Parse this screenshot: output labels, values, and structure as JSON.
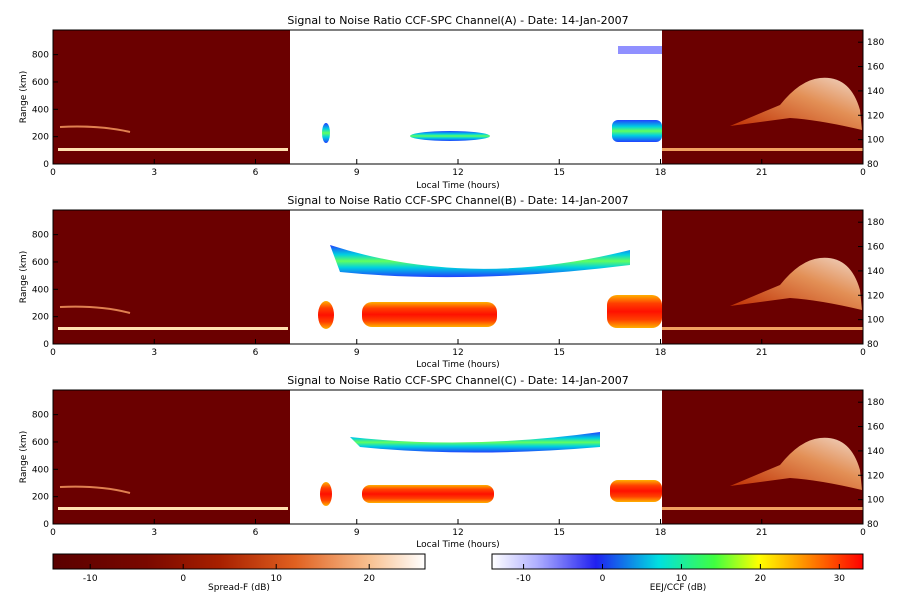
{
  "chart_data": [
    {
      "type": "heatmap",
      "title": "Signal to Noise Ratio CCF-SPC Channel(A) - Date: 14-Jan-2007",
      "xlabel": "Local Time (hours)",
      "ylabel": "Range (km)",
      "x_ticks": [
        "0",
        "3",
        "6",
        "9",
        "12",
        "15",
        "18",
        "21",
        "0"
      ],
      "y_ticks_left": [
        "0",
        "200",
        "400",
        "600",
        "800"
      ],
      "y_ticks_right": [
        "80",
        "100",
        "120",
        "140",
        "160",
        "180"
      ],
      "ylim_left": [
        0,
        980
      ],
      "ylim_right": [
        80,
        190
      ]
    },
    {
      "type": "heatmap",
      "title": "Signal to Noise Ratio CCF-SPC Channel(B) - Date: 14-Jan-2007",
      "xlabel": "Local Time (hours)",
      "ylabel": "Range (km)",
      "x_ticks": [
        "0",
        "3",
        "6",
        "9",
        "12",
        "15",
        "18",
        "21",
        "0"
      ],
      "y_ticks_left": [
        "0",
        "200",
        "400",
        "600",
        "800"
      ],
      "y_ticks_right": [
        "80",
        "100",
        "120",
        "140",
        "160",
        "180"
      ],
      "ylim_left": [
        0,
        980
      ],
      "ylim_right": [
        80,
        190
      ]
    },
    {
      "type": "heatmap",
      "title": "Signal to Noise Ratio CCF-SPC Channel(C) - Date: 14-Jan-2007",
      "xlabel": "Local Time (hours)",
      "ylabel": "Range (km)",
      "x_ticks": [
        "0",
        "3",
        "6",
        "9",
        "12",
        "15",
        "18",
        "21",
        "0"
      ],
      "y_ticks_left": [
        "0",
        "200",
        "400",
        "600",
        "800"
      ],
      "y_ticks_right": [
        "80",
        "100",
        "120",
        "140",
        "160",
        "180"
      ],
      "ylim_left": [
        0,
        980
      ],
      "ylim_right": [
        80,
        190
      ]
    }
  ],
  "colorbars": [
    {
      "label": "Spread-F (dB)",
      "ticks": [
        "-10",
        "0",
        "10",
        "20"
      ],
      "colors": [
        "#5a0000",
        "#8a1000",
        "#c84000",
        "#f08a40",
        "#ffe8d0",
        "#ffffff"
      ]
    },
    {
      "label": "EEJ/CCF (dB)",
      "ticks": [
        "-10",
        "0",
        "10",
        "20",
        "30"
      ],
      "colors": [
        "#ffffff",
        "#3030ff",
        "#00e0e0",
        "#40ff40",
        "#ffff00",
        "#ff8000",
        "#ff0000"
      ]
    }
  ]
}
